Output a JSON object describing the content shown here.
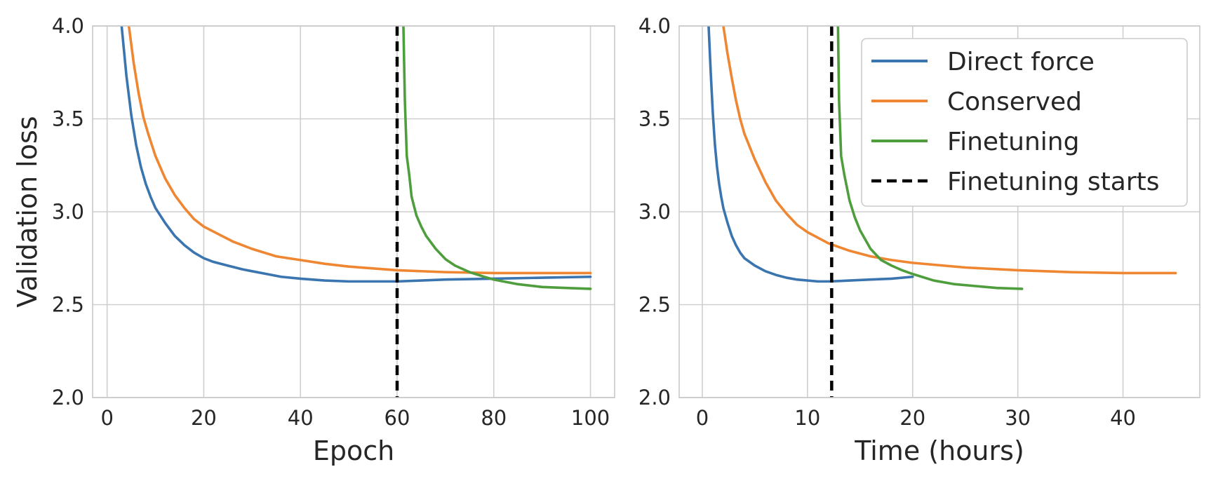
{
  "chart_data": [
    {
      "type": "line",
      "xlabel": "Epoch",
      "ylabel": "Validation loss",
      "xlim": [
        -3,
        105
      ],
      "ylim": [
        2.0,
        4.0
      ],
      "xticks": [
        0,
        20,
        40,
        60,
        80,
        100
      ],
      "xtick_labels": [
        "0",
        "20",
        "40",
        "60",
        "80",
        "100"
      ],
      "yticks": [
        2.0,
        2.5,
        3.0,
        3.5,
        4.0
      ],
      "ytick_labels": [
        "2.0",
        "2.5",
        "3.0",
        "3.5",
        "4.0"
      ],
      "grid": true,
      "vline": {
        "name": "Finetuning starts",
        "x": 60,
        "style": "dashed",
        "color": "#000000"
      },
      "series": [
        {
          "name": "Direct force",
          "color": "#3a75b0",
          "x": [
            3,
            4,
            5,
            6,
            7,
            8,
            9,
            10,
            12,
            14,
            16,
            18,
            20,
            22,
            25,
            28,
            30,
            33,
            36,
            40,
            45,
            50,
            55,
            60,
            65,
            70,
            80,
            90,
            100
          ],
          "y": [
            4.0,
            3.73,
            3.52,
            3.36,
            3.24,
            3.15,
            3.08,
            3.02,
            2.94,
            2.87,
            2.82,
            2.78,
            2.75,
            2.73,
            2.71,
            2.69,
            2.68,
            2.665,
            2.65,
            2.64,
            2.63,
            2.625,
            2.625,
            2.625,
            2.63,
            2.635,
            2.64,
            2.645,
            2.65
          ]
        },
        {
          "name": "Conserved",
          "color": "#ef8632",
          "x": [
            4.5,
            5.5,
            6.5,
            7.5,
            8.5,
            10,
            12,
            14,
            16,
            18,
            20,
            23,
            26,
            30,
            35,
            40,
            45,
            50,
            55,
            60,
            70,
            80,
            90,
            100
          ],
          "y": [
            4.0,
            3.8,
            3.64,
            3.51,
            3.42,
            3.3,
            3.18,
            3.09,
            3.02,
            2.96,
            2.92,
            2.88,
            2.84,
            2.8,
            2.76,
            2.74,
            2.72,
            2.705,
            2.695,
            2.685,
            2.675,
            2.67,
            2.67,
            2.67
          ]
        },
        {
          "name": "Finetuning",
          "color": "#4f9e3e",
          "x": [
            61.3,
            61.6,
            62,
            62.5,
            63,
            64,
            65,
            66,
            68,
            70,
            72,
            75,
            78,
            80,
            85,
            90,
            95,
            100
          ],
          "y": [
            4.0,
            3.6,
            3.3,
            3.2,
            3.08,
            2.98,
            2.92,
            2.87,
            2.8,
            2.745,
            2.71,
            2.675,
            2.65,
            2.635,
            2.61,
            2.595,
            2.59,
            2.585
          ]
        }
      ]
    },
    {
      "type": "line",
      "xlabel": "Time (hours)",
      "ylabel": "",
      "xlim": [
        -2.2,
        47.3
      ],
      "ylim": [
        2.0,
        4.0
      ],
      "xticks": [
        0,
        10,
        20,
        30,
        40
      ],
      "xtick_labels": [
        "0",
        "10",
        "20",
        "30",
        "40"
      ],
      "yticks": [
        2.0,
        2.5,
        3.0,
        3.5,
        4.0
      ],
      "ytick_labels": [
        "2.0",
        "2.5",
        "3.0",
        "3.5",
        "4.0"
      ],
      "grid": true,
      "vline": {
        "name": "Finetuning starts",
        "x": 12.3,
        "style": "dashed",
        "color": "#000000"
      },
      "legend": {
        "placement": "upper-right",
        "entries": [
          {
            "label": "Direct force",
            "color": "#3a75b0",
            "style": "solid"
          },
          {
            "label": "Conserved",
            "color": "#ef8632",
            "style": "solid"
          },
          {
            "label": "Finetuning",
            "color": "#4f9e3e",
            "style": "solid"
          },
          {
            "label": "Finetuning starts",
            "color": "#000000",
            "style": "dashed"
          }
        ]
      },
      "series": [
        {
          "name": "Direct force",
          "color": "#3a75b0",
          "x": [
            0.6,
            0.8,
            1.0,
            1.2,
            1.4,
            1.6,
            1.8,
            2.0,
            2.4,
            2.8,
            3.2,
            3.6,
            4.0,
            5.0,
            6.0,
            7.0,
            8.0,
            9.0,
            10.0,
            11.0,
            12.0,
            13.0,
            14.0,
            16.0,
            18.0,
            20.0
          ],
          "y": [
            4.0,
            3.75,
            3.53,
            3.36,
            3.24,
            3.15,
            3.08,
            3.02,
            2.94,
            2.87,
            2.82,
            2.78,
            2.75,
            2.71,
            2.68,
            2.66,
            2.645,
            2.635,
            2.63,
            2.625,
            2.625,
            2.627,
            2.63,
            2.635,
            2.64,
            2.65
          ]
        },
        {
          "name": "Conserved",
          "color": "#ef8632",
          "x": [
            2.0,
            2.4,
            2.8,
            3.2,
            3.6,
            4.0,
            5.0,
            6.0,
            7.0,
            8.0,
            9.0,
            10.0,
            12.0,
            14.0,
            16.0,
            18.0,
            20.0,
            25.0,
            30.0,
            35.0,
            40.0,
            45.0
          ],
          "y": [
            4.0,
            3.85,
            3.72,
            3.6,
            3.5,
            3.42,
            3.28,
            3.16,
            3.06,
            2.99,
            2.93,
            2.89,
            2.83,
            2.79,
            2.76,
            2.74,
            2.725,
            2.7,
            2.685,
            2.675,
            2.67,
            2.67
          ]
        },
        {
          "name": "Finetuning",
          "color": "#4f9e3e",
          "x": [
            12.9,
            13.0,
            13.2,
            13.5,
            14.0,
            14.5,
            15.0,
            16.0,
            17.0,
            18.0,
            19.0,
            20.0,
            22.0,
            24.0,
            26.0,
            28.0,
            30.4
          ],
          "y": [
            4.0,
            3.6,
            3.3,
            3.2,
            3.06,
            2.97,
            2.9,
            2.8,
            2.74,
            2.71,
            2.685,
            2.665,
            2.63,
            2.61,
            2.6,
            2.59,
            2.585
          ]
        }
      ]
    }
  ]
}
